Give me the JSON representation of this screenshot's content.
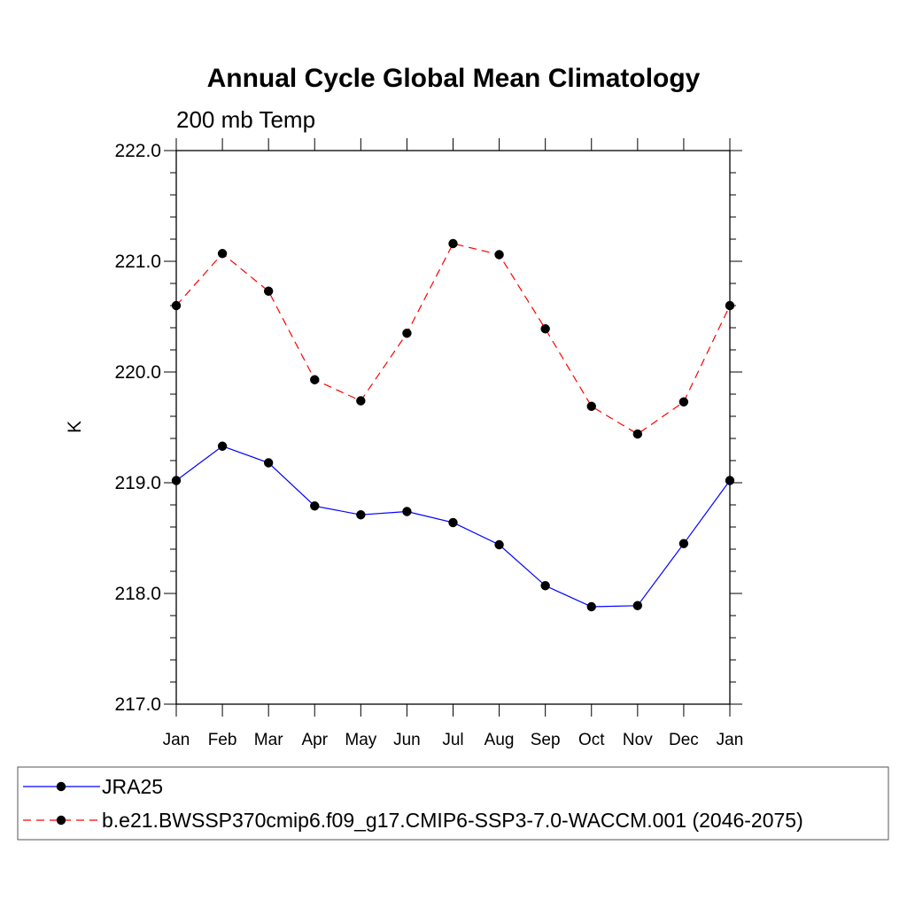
{
  "chart_data": {
    "type": "line",
    "title": "Annual Cycle Global Mean Climatology",
    "subtitle": "200 mb Temp",
    "xlabel": "",
    "ylabel": "K",
    "ylim": [
      217.0,
      222.0
    ],
    "yticks": [
      "217.0",
      "218.0",
      "219.0",
      "220.0",
      "221.0",
      "222.0"
    ],
    "categories": [
      "Jan",
      "Feb",
      "Mar",
      "Apr",
      "May",
      "Jun",
      "Jul",
      "Aug",
      "Sep",
      "Oct",
      "Nov",
      "Dec",
      "Jan"
    ],
    "series": [
      {
        "name": "JRA25",
        "color": "#0000ff",
        "dash": "solid",
        "values": [
          219.02,
          219.33,
          219.18,
          218.79,
          218.71,
          218.74,
          218.64,
          218.44,
          218.07,
          217.88,
          217.89,
          218.45,
          219.02
        ]
      },
      {
        "name": "b.e21.BWSSP370cmip6.f09_g17.CMIP6-SSP3-7.0-WACCM.001 (2046-2075)",
        "color": "#ff0000",
        "dash": "dashed",
        "values": [
          220.6,
          221.07,
          220.73,
          219.93,
          219.74,
          220.35,
          221.16,
          221.06,
          220.39,
          219.69,
          219.44,
          219.73,
          220.6
        ]
      }
    ],
    "legend_position": "bottom"
  }
}
